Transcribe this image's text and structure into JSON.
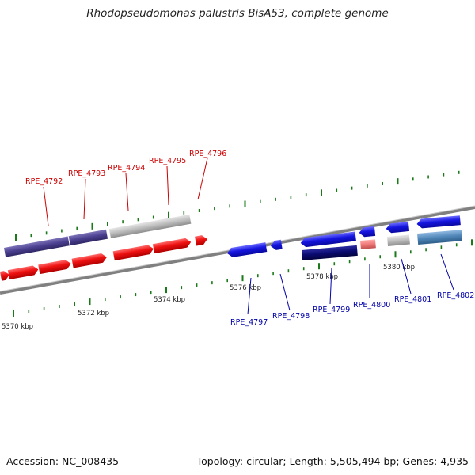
{
  "title": "Rhodopseudomonas palustris BisA53, complete genome",
  "footer": {
    "accession": "Accession: NC_008435",
    "summary": "Topology: circular; Length: 5,505,494 bp; Genes: 4,935"
  },
  "ruler_labels": [
    "5370 kbp",
    "5372 kbp",
    "5374 kbp",
    "5376 kbp",
    "5378 kbp",
    "5380 kbp"
  ],
  "gene_labels_top": [
    "RPE_4792",
    "RPE_4793",
    "RPE_4794",
    "RPE_4795",
    "RPE_4796"
  ],
  "gene_labels_bottom": [
    "RPE_4797",
    "RPE_4798",
    "RPE_4799",
    "RPE_4800",
    "RPE_4801",
    "RPE_4802"
  ],
  "colors": {
    "label_top": "#cc0000",
    "label_bottom": "#0000aa",
    "tick": "#1a7a1a",
    "backbone": "#808080",
    "cds_red": "#ee1111",
    "cds_blue": "#1515e0",
    "cds_purple": "#4a3f8f",
    "cds_gray": "#bdbdbd",
    "cds_navy": "#0a0a70",
    "cds_pink": "#ee7777",
    "cds_steel": "#4f86b8"
  }
}
